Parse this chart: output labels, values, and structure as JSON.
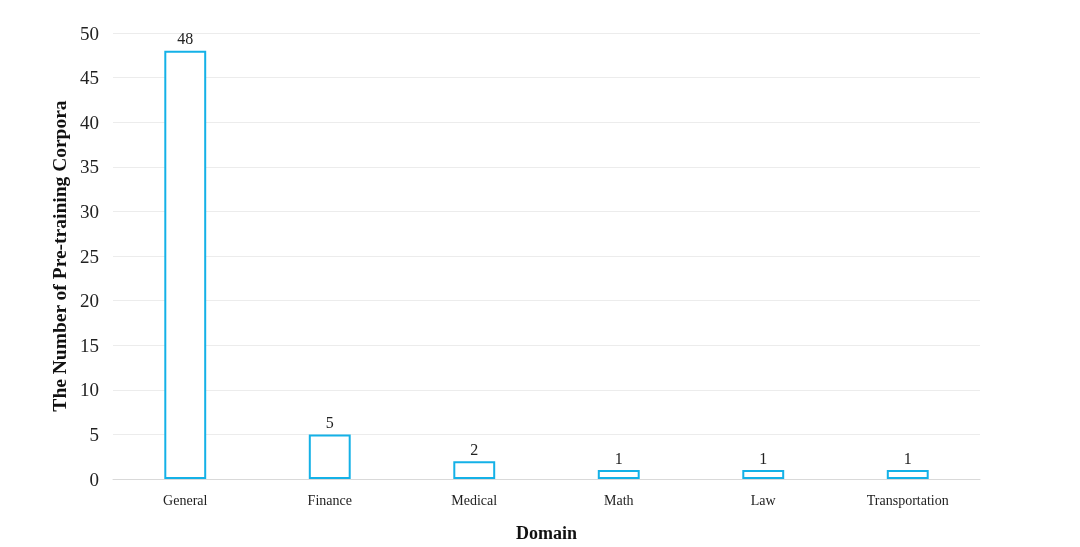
{
  "chart_data": {
    "type": "bar",
    "xlabel": "Domain",
    "ylabel": "The Number of Pre-training Corpora",
    "categories": [
      "General",
      "Finance",
      "Medical",
      "Math",
      "Law",
      "Transportation"
    ],
    "values": [
      48,
      5,
      2,
      1,
      1,
      1
    ],
    "color": "#14b1e7",
    "data_labels": true,
    "ylim": [
      0,
      50
    ],
    "yticks": [
      0,
      5,
      10,
      15,
      20,
      25,
      30,
      35,
      40,
      45,
      50
    ],
    "grid": "y"
  }
}
